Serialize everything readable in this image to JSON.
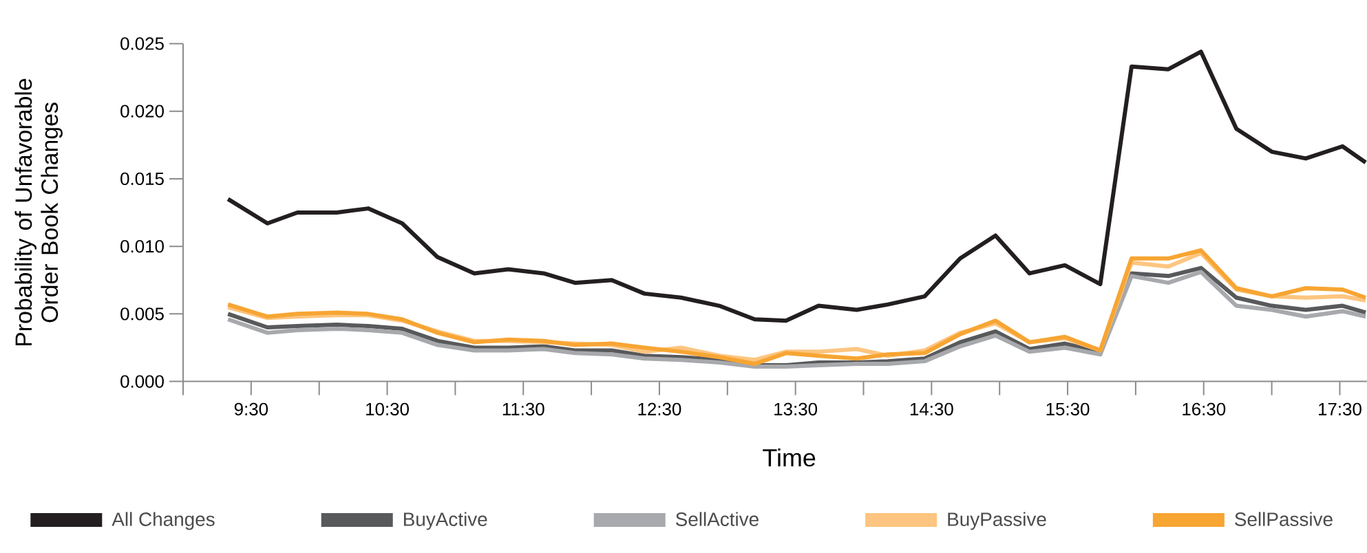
{
  "chart_data": {
    "type": "line",
    "xlabel": "Time",
    "ylabel": "Probability of Unfavorable Order Book Changes",
    "x": [
      9.33,
      9.62,
      9.84,
      10.13,
      10.36,
      10.61,
      10.87,
      11.14,
      11.39,
      11.65,
      11.88,
      12.15,
      12.39,
      12.66,
      12.94,
      13.2,
      13.43,
      13.67,
      13.95,
      14.18,
      14.45,
      14.71,
      14.97,
      15.22,
      15.48,
      15.74,
      15.97,
      16.24,
      16.48,
      16.74,
      17.0,
      17.25,
      17.52,
      17.69
    ],
    "series": [
      {
        "name": "All Changes",
        "color": "#231f20",
        "values": [
          0.0135,
          0.0117,
          0.0125,
          0.0125,
          0.0128,
          0.0117,
          0.0092,
          0.008,
          0.0083,
          0.008,
          0.0073,
          0.0075,
          0.0065,
          0.0062,
          0.0056,
          0.0046,
          0.0045,
          0.0056,
          0.0053,
          0.0057,
          0.0063,
          0.0091,
          0.0108,
          0.008,
          0.0086,
          0.0072,
          0.0233,
          0.0231,
          0.0244,
          0.0187,
          0.017,
          0.0165,
          0.0174,
          0.0162
        ]
      },
      {
        "name": "BuyActive",
        "color": "#58595b",
        "values": [
          0.005,
          0.004,
          0.0041,
          0.0042,
          0.0041,
          0.0039,
          0.003,
          0.0025,
          0.0025,
          0.0026,
          0.0023,
          0.0023,
          0.0019,
          0.0018,
          0.0016,
          0.0012,
          0.0012,
          0.0014,
          0.0014,
          0.0015,
          0.0017,
          0.0029,
          0.0037,
          0.0024,
          0.0028,
          0.0022,
          0.008,
          0.0078,
          0.0084,
          0.0062,
          0.0056,
          0.0053,
          0.0056,
          0.0051
        ]
      },
      {
        "name": "SellActive",
        "color": "#a7a9ac",
        "values": [
          0.0046,
          0.0036,
          0.0038,
          0.0039,
          0.0038,
          0.0036,
          0.0027,
          0.0023,
          0.0023,
          0.0024,
          0.0021,
          0.002,
          0.0017,
          0.0016,
          0.0014,
          0.0011,
          0.0011,
          0.0012,
          0.0013,
          0.0013,
          0.0015,
          0.0026,
          0.0034,
          0.0022,
          0.0025,
          0.002,
          0.0078,
          0.0073,
          0.0081,
          0.0056,
          0.0053,
          0.0048,
          0.0052,
          0.0048
        ]
      },
      {
        "name": "BuyPassive",
        "color": "#fdc57f",
        "values": [
          0.0055,
          0.0047,
          0.0048,
          0.0049,
          0.0049,
          0.0045,
          0.0037,
          0.003,
          0.003,
          0.0029,
          0.0028,
          0.0027,
          0.0022,
          0.0025,
          0.0019,
          0.0016,
          0.0022,
          0.0022,
          0.0024,
          0.0019,
          0.0023,
          0.0036,
          0.0043,
          0.0029,
          0.0032,
          0.0023,
          0.0088,
          0.0085,
          0.0095,
          0.0068,
          0.0063,
          0.0062,
          0.0063,
          0.006
        ]
      },
      {
        "name": "SellPassive",
        "color": "#f7a533",
        "values": [
          0.0057,
          0.0048,
          0.005,
          0.0051,
          0.005,
          0.0046,
          0.0036,
          0.0029,
          0.0031,
          0.003,
          0.0027,
          0.0028,
          0.0025,
          0.0022,
          0.0018,
          0.0013,
          0.0021,
          0.0019,
          0.0017,
          0.002,
          0.0021,
          0.0035,
          0.0045,
          0.0029,
          0.0033,
          0.0023,
          0.0091,
          0.0091,
          0.0097,
          0.0069,
          0.0063,
          0.0069,
          0.0068,
          0.0062
        ]
      }
    ],
    "xlim": [
      9.0,
      17.7
    ],
    "ylim": [
      0,
      0.025
    ],
    "xticks": [
      {
        "value": 9.0,
        "label": null
      },
      {
        "value": 9.5,
        "label": "9:30"
      },
      {
        "value": 10.0,
        "label": null
      },
      {
        "value": 10.5,
        "label": "10:30"
      },
      {
        "value": 11.0,
        "label": null
      },
      {
        "value": 11.5,
        "label": "11:30"
      },
      {
        "value": 12.0,
        "label": null
      },
      {
        "value": 12.5,
        "label": "12:30"
      },
      {
        "value": 13.0,
        "label": null
      },
      {
        "value": 13.5,
        "label": "13:30"
      },
      {
        "value": 14.0,
        "label": null
      },
      {
        "value": 14.5,
        "label": "14:30"
      },
      {
        "value": 15.0,
        "label": null
      },
      {
        "value": 15.5,
        "label": "15:30"
      },
      {
        "value": 16.0,
        "label": null
      },
      {
        "value": 16.5,
        "label": "16:30"
      },
      {
        "value": 17.0,
        "label": null
      },
      {
        "value": 17.5,
        "label": "17:30"
      }
    ],
    "yticks": [
      {
        "value": 0,
        "label": "0.000"
      },
      {
        "value": 0.005,
        "label": "0.005"
      },
      {
        "value": 0.01,
        "label": "0.010"
      },
      {
        "value": 0.015,
        "label": "0.015"
      },
      {
        "value": 0.02,
        "label": "0.020"
      },
      {
        "value": 0.025,
        "label": "0.025"
      }
    ],
    "grid": false,
    "legend": "bottom",
    "marker": "none",
    "line_style": "solid"
  }
}
